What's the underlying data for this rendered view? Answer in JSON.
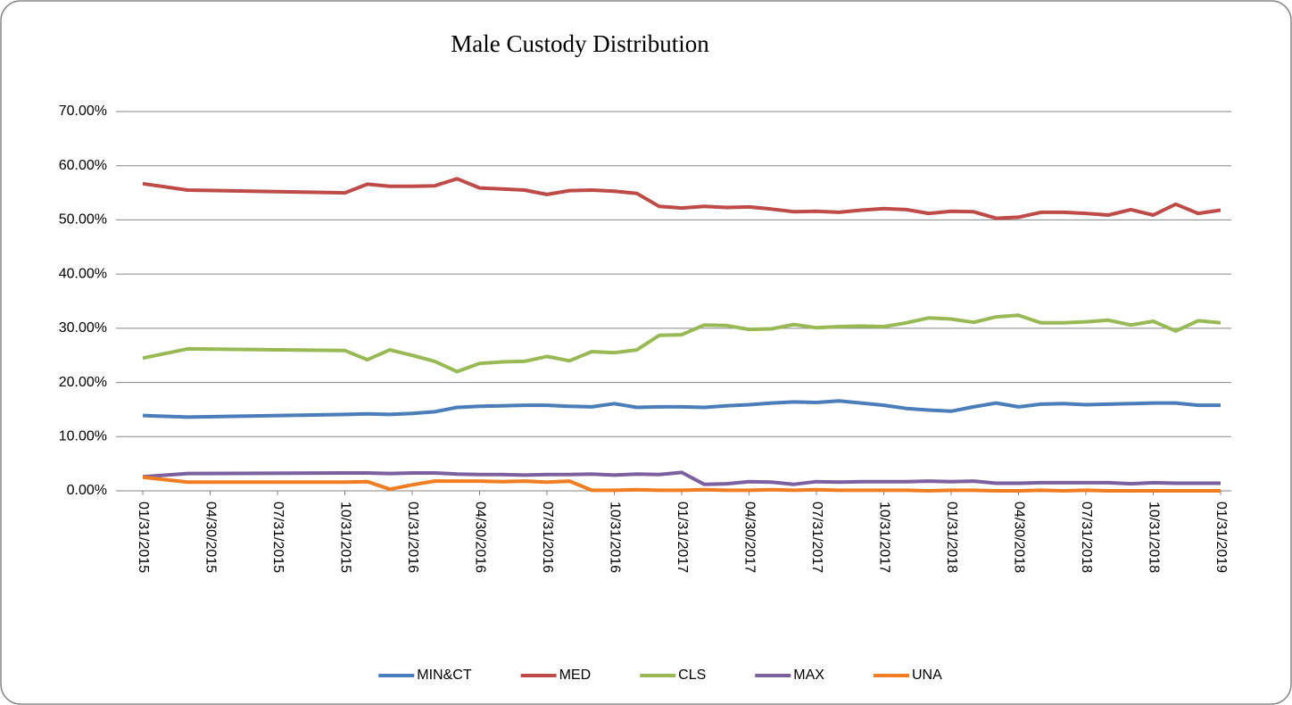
{
  "chart_data": {
    "type": "line",
    "title": "Male  Custody Distribution",
    "x": [
      "01/31/2015",
      "03/31/2015",
      "10/31/2015",
      "11/30/2015",
      "12/31/2015",
      "01/31/2016",
      "02/29/2016",
      "03/31/2016",
      "04/30/2016",
      "05/31/2016",
      "06/30/2016",
      "07/31/2016",
      "08/31/2016",
      "09/30/2016",
      "10/31/2016",
      "11/30/2016",
      "12/31/2016",
      "01/31/2017",
      "02/28/2017",
      "03/31/2017",
      "04/30/2017",
      "05/31/2017",
      "06/30/2017",
      "07/31/2017",
      "08/31/2017",
      "09/30/2017",
      "10/31/2017",
      "11/30/2017",
      "12/31/2017",
      "01/31/2018",
      "02/28/2018",
      "03/31/2018",
      "04/30/2018",
      "05/31/2018",
      "06/30/2018",
      "07/31/2018",
      "08/31/2018",
      "09/30/2018",
      "10/31/2018",
      "11/30/2018",
      "12/31/2018",
      "01/31/2019"
    ],
    "xlim": [
      "01/31/2015",
      "01/31/2019"
    ],
    "xticks": [
      "01/31/2015",
      "04/30/2015",
      "07/31/2015",
      "10/31/2015",
      "01/31/2016",
      "04/30/2016",
      "07/31/2016",
      "10/31/2016",
      "01/31/2017",
      "04/30/2017",
      "07/31/2017",
      "10/31/2017",
      "01/31/2018",
      "04/30/2018",
      "07/31/2018",
      "10/31/2018",
      "01/31/2019"
    ],
    "ylim": [
      0,
      70
    ],
    "yticks": [
      {
        "value": 0,
        "label": "0.00%"
      },
      {
        "value": 10,
        "label": "10.00%"
      },
      {
        "value": 20,
        "label": "20.00%"
      },
      {
        "value": 30,
        "label": "30.00%"
      },
      {
        "value": 40,
        "label": "40.00%"
      },
      {
        "value": 50,
        "label": "50.00%"
      },
      {
        "value": 60,
        "label": "60.00%"
      },
      {
        "value": 70,
        "label": "70.00%"
      }
    ],
    "grid": true,
    "legend": "bottom",
    "series": [
      {
        "name": "MIN&CT",
        "color": "#4a7ebb",
        "values": [
          13.9,
          13.6,
          14.1,
          14.2,
          14.1,
          14.3,
          14.6,
          15.4,
          15.6,
          15.7,
          15.8,
          15.8,
          15.6,
          15.5,
          16.1,
          15.4,
          15.5,
          15.5,
          15.4,
          15.7,
          15.9,
          16.2,
          16.4,
          16.3,
          16.6,
          16.2,
          15.8,
          15.2,
          14.9,
          14.7,
          15.5,
          16.2,
          15.5,
          16.0,
          16.1,
          15.9,
          16.0,
          16.1,
          16.2,
          16.2,
          15.8,
          15.8
        ]
      },
      {
        "name": "MED",
        "color": "#be4b48",
        "values": [
          56.7,
          55.5,
          55.0,
          56.6,
          56.2,
          56.2,
          56.3,
          57.6,
          55.9,
          55.7,
          55.5,
          54.7,
          55.4,
          55.5,
          55.3,
          54.9,
          52.5,
          52.2,
          52.5,
          52.3,
          52.4,
          52.0,
          51.5,
          51.6,
          51.4,
          51.8,
          52.1,
          51.9,
          51.2,
          51.6,
          51.5,
          50.3,
          50.5,
          51.4,
          51.4,
          51.2,
          50.9,
          51.9,
          50.9,
          52.9,
          51.2,
          51.8
        ]
      },
      {
        "name": "CLS",
        "color": "#98b954",
        "values": [
          24.5,
          26.2,
          25.9,
          24.2,
          26.0,
          25.0,
          23.9,
          22.0,
          23.5,
          23.8,
          23.9,
          24.8,
          24.0,
          25.7,
          25.5,
          26.0,
          28.7,
          28.8,
          30.6,
          30.5,
          29.8,
          29.9,
          30.7,
          30.1,
          30.3,
          30.4,
          30.3,
          31.0,
          31.9,
          31.7,
          31.1,
          32.1,
          32.4,
          31.0,
          31.0,
          31.2,
          31.5,
          30.6,
          31.3,
          29.5,
          31.4,
          31.0
        ]
      },
      {
        "name": "MAX",
        "color": "#7d60a0",
        "values": [
          2.6,
          3.2,
          3.3,
          3.3,
          3.2,
          3.3,
          3.3,
          3.1,
          3.0,
          3.0,
          2.9,
          3.0,
          3.0,
          3.1,
          2.9,
          3.1,
          3.0,
          3.4,
          1.2,
          1.3,
          1.7,
          1.6,
          1.2,
          1.7,
          1.6,
          1.7,
          1.7,
          1.7,
          1.8,
          1.7,
          1.8,
          1.4,
          1.4,
          1.5,
          1.5,
          1.5,
          1.5,
          1.3,
          1.5,
          1.4,
          1.4,
          1.4
        ]
      },
      {
        "name": "UNA",
        "color": "#f07d22",
        "values": [
          2.5,
          1.6,
          1.6,
          1.7,
          0.3,
          1.1,
          1.8,
          1.8,
          1.8,
          1.7,
          1.8,
          1.6,
          1.8,
          0.1,
          0.1,
          0.2,
          0.1,
          0.1,
          0.2,
          0.1,
          0.1,
          0.2,
          0.1,
          0.2,
          0.1,
          0.1,
          0.1,
          0.1,
          0.0,
          0.1,
          0.1,
          0.0,
          0.0,
          0.1,
          0.0,
          0.1,
          0.0,
          0.0,
          0.0,
          0.0,
          0.0,
          0.0
        ]
      }
    ]
  }
}
